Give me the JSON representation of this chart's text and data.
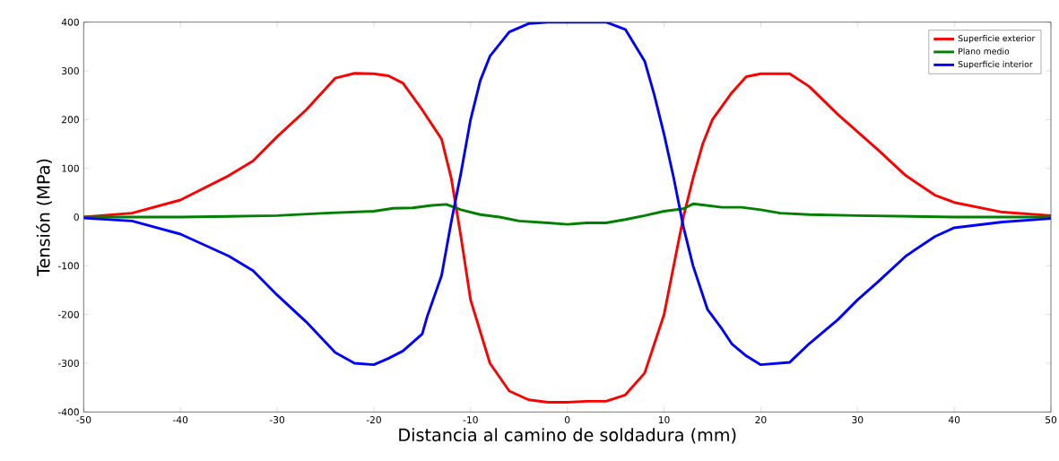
{
  "chart_data": {
    "type": "line",
    "xlabel": "Distancia al camino de soldadura (mm)",
    "ylabel": "Tensión (MPa)",
    "xlim": [
      -50,
      50
    ],
    "ylim": [
      -400,
      400
    ],
    "xticks": [
      -50,
      -40,
      -30,
      -20,
      -10,
      0,
      10,
      20,
      30,
      40,
      50
    ],
    "yticks": [
      -400,
      -300,
      -200,
      -100,
      0,
      100,
      200,
      300,
      400
    ],
    "legend": "top right",
    "grid": false,
    "marker": "none",
    "line_style": "solid",
    "series": [
      {
        "name": "Superficie exterior",
        "color": "#ff0000",
        "x": [
          -50,
          -45,
          -40,
          -35,
          -32.5,
          -30,
          -27,
          -24,
          -22,
          -20,
          -18.5,
          -17,
          -15,
          -13,
          -12,
          -11,
          -10,
          -8,
          -6,
          -4,
          -2,
          0,
          2,
          4,
          6,
          8,
          10,
          11,
          12,
          13,
          14,
          15,
          17,
          18.5,
          20,
          23,
          25,
          28,
          30,
          32,
          35,
          38,
          40,
          45,
          50
        ],
        "values": [
          0,
          8,
          35,
          85,
          115,
          165,
          220,
          285,
          295,
          294,
          290,
          275,
          220,
          160,
          80,
          -40,
          -170,
          -300,
          -357,
          -375,
          -380,
          -380,
          -378,
          -378,
          -365,
          -320,
          -200,
          -100,
          0,
          80,
          150,
          200,
          255,
          288,
          294,
          294,
          268,
          210,
          175,
          140,
          85,
          45,
          30,
          10,
          3
        ]
      },
      {
        "name": "Plano medio",
        "color": "#008000",
        "x": [
          -50,
          -40,
          -30,
          -25,
          -20,
          -18,
          -16,
          -14,
          -12.5,
          -11,
          -9,
          -7,
          -5,
          -2,
          0,
          2,
          4,
          6,
          8,
          10,
          12,
          13,
          14,
          16,
          18,
          20,
          22,
          25,
          30,
          40,
          50
        ],
        "values": [
          0,
          0,
          3,
          8,
          12,
          18,
          19,
          24,
          26,
          15,
          5,
          0,
          -8,
          -12,
          -15,
          -12,
          -12,
          -5,
          3,
          12,
          17,
          27,
          25,
          20,
          20,
          15,
          8,
          5,
          3,
          0,
          0
        ]
      },
      {
        "name": "Superficie interior",
        "color": "#0000ff",
        "x": [
          -50,
          -45,
          -40,
          -35,
          -32.5,
          -30,
          -27,
          -24,
          -22,
          -20,
          -18.5,
          -17,
          -15,
          -14.5,
          -13,
          -12,
          -11,
          -10,
          -9,
          -8,
          -6,
          -4,
          -2,
          0,
          2,
          4,
          6,
          8,
          9,
          10,
          11,
          12,
          13,
          14.5,
          16,
          17,
          18.5,
          20,
          23,
          25,
          28,
          30,
          32,
          35,
          38,
          40,
          45,
          50
        ],
        "values": [
          -2,
          -8,
          -35,
          -80,
          -110,
          -160,
          -215,
          -278,
          -300,
          -303,
          -290,
          -275,
          -240,
          -205,
          -120,
          -10,
          90,
          200,
          280,
          330,
          380,
          397,
          400,
          400,
          400,
          400,
          385,
          320,
          250,
          170,
          80,
          -20,
          -100,
          -190,
          -230,
          -260,
          -285,
          -303,
          -298,
          -260,
          -210,
          -170,
          -135,
          -80,
          -40,
          -22,
          -10,
          -3
        ]
      }
    ]
  }
}
